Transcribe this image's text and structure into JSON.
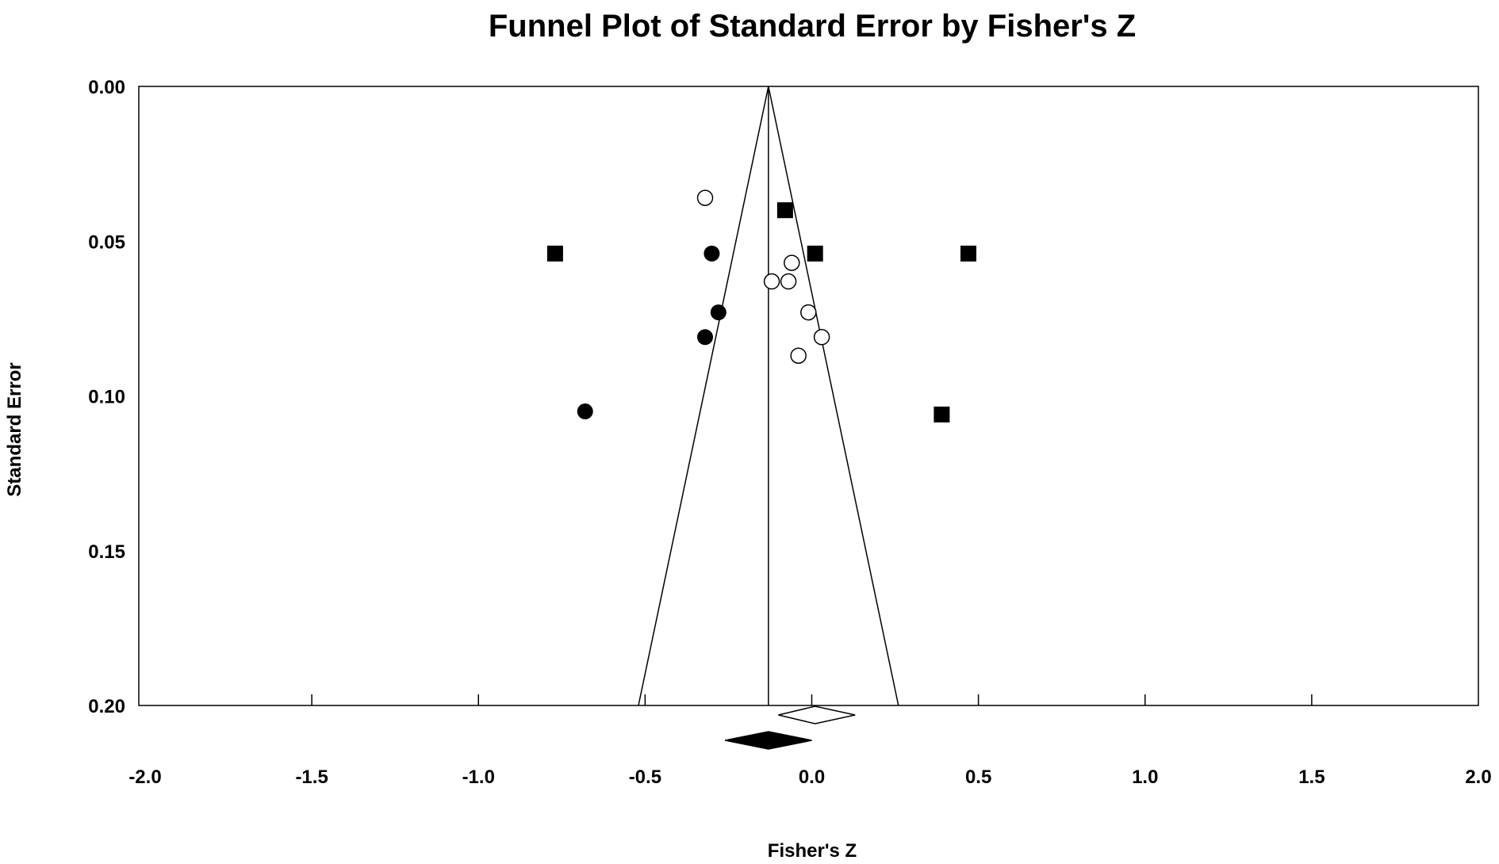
{
  "colors": {
    "ink": "#000000",
    "background": "#ffffff"
  },
  "chart_data": {
    "type": "scatter",
    "title": "Funnel Plot of Standard Error by Fisher's Z",
    "xlabel": "Fisher's Z",
    "ylabel": "Standard Error",
    "xlim": [
      -2.0,
      2.0
    ],
    "ylim": [
      0.0,
      0.2
    ],
    "y_inverted": true,
    "grid": false,
    "legend": "none",
    "x_ticks": [
      "-2.0",
      "-1.5",
      "-1.0",
      "-0.5",
      "0.0",
      "0.5",
      "1.0",
      "1.5",
      "2.0"
    ],
    "x_tick_values": [
      -2.0,
      -1.5,
      -1.0,
      -0.5,
      0.0,
      0.5,
      1.0,
      1.5,
      2.0
    ],
    "y_ticks": [
      "0.00",
      "0.05",
      "0.10",
      "0.15",
      "0.20"
    ],
    "y_tick_values": [
      0.0,
      0.05,
      0.1,
      0.15,
      0.2
    ],
    "funnel": {
      "center_z": -0.13,
      "apex_se": 0.0,
      "bottom_se": 0.2,
      "bottom_left_z": -0.52,
      "bottom_right_z": 0.26
    },
    "series": [
      {
        "marker": "square-filled",
        "points": [
          {
            "x": -0.77,
            "y": 0.054
          },
          {
            "x": -0.08,
            "y": 0.04
          },
          {
            "x": 0.01,
            "y": 0.054
          },
          {
            "x": 0.47,
            "y": 0.054
          },
          {
            "x": 0.39,
            "y": 0.106
          }
        ]
      },
      {
        "marker": "circle-filled",
        "points": [
          {
            "x": -0.3,
            "y": 0.054
          },
          {
            "x": -0.28,
            "y": 0.073
          },
          {
            "x": -0.32,
            "y": 0.081
          },
          {
            "x": -0.68,
            "y": 0.105
          }
        ]
      },
      {
        "marker": "circle-open",
        "points": [
          {
            "x": -0.32,
            "y": 0.036
          },
          {
            "x": -0.06,
            "y": 0.057
          },
          {
            "x": -0.12,
            "y": 0.063
          },
          {
            "x": -0.07,
            "y": 0.063
          },
          {
            "x": -0.01,
            "y": 0.073
          },
          {
            "x": 0.03,
            "y": 0.081
          },
          {
            "x": -0.04,
            "y": 0.087
          }
        ]
      }
    ],
    "summary_diamonds": [
      {
        "style": "open",
        "center_z": 0.01,
        "low_z": -0.1,
        "high_z": 0.13
      },
      {
        "style": "filled",
        "center_z": -0.13,
        "low_z": -0.26,
        "high_z": 0.0
      }
    ]
  }
}
